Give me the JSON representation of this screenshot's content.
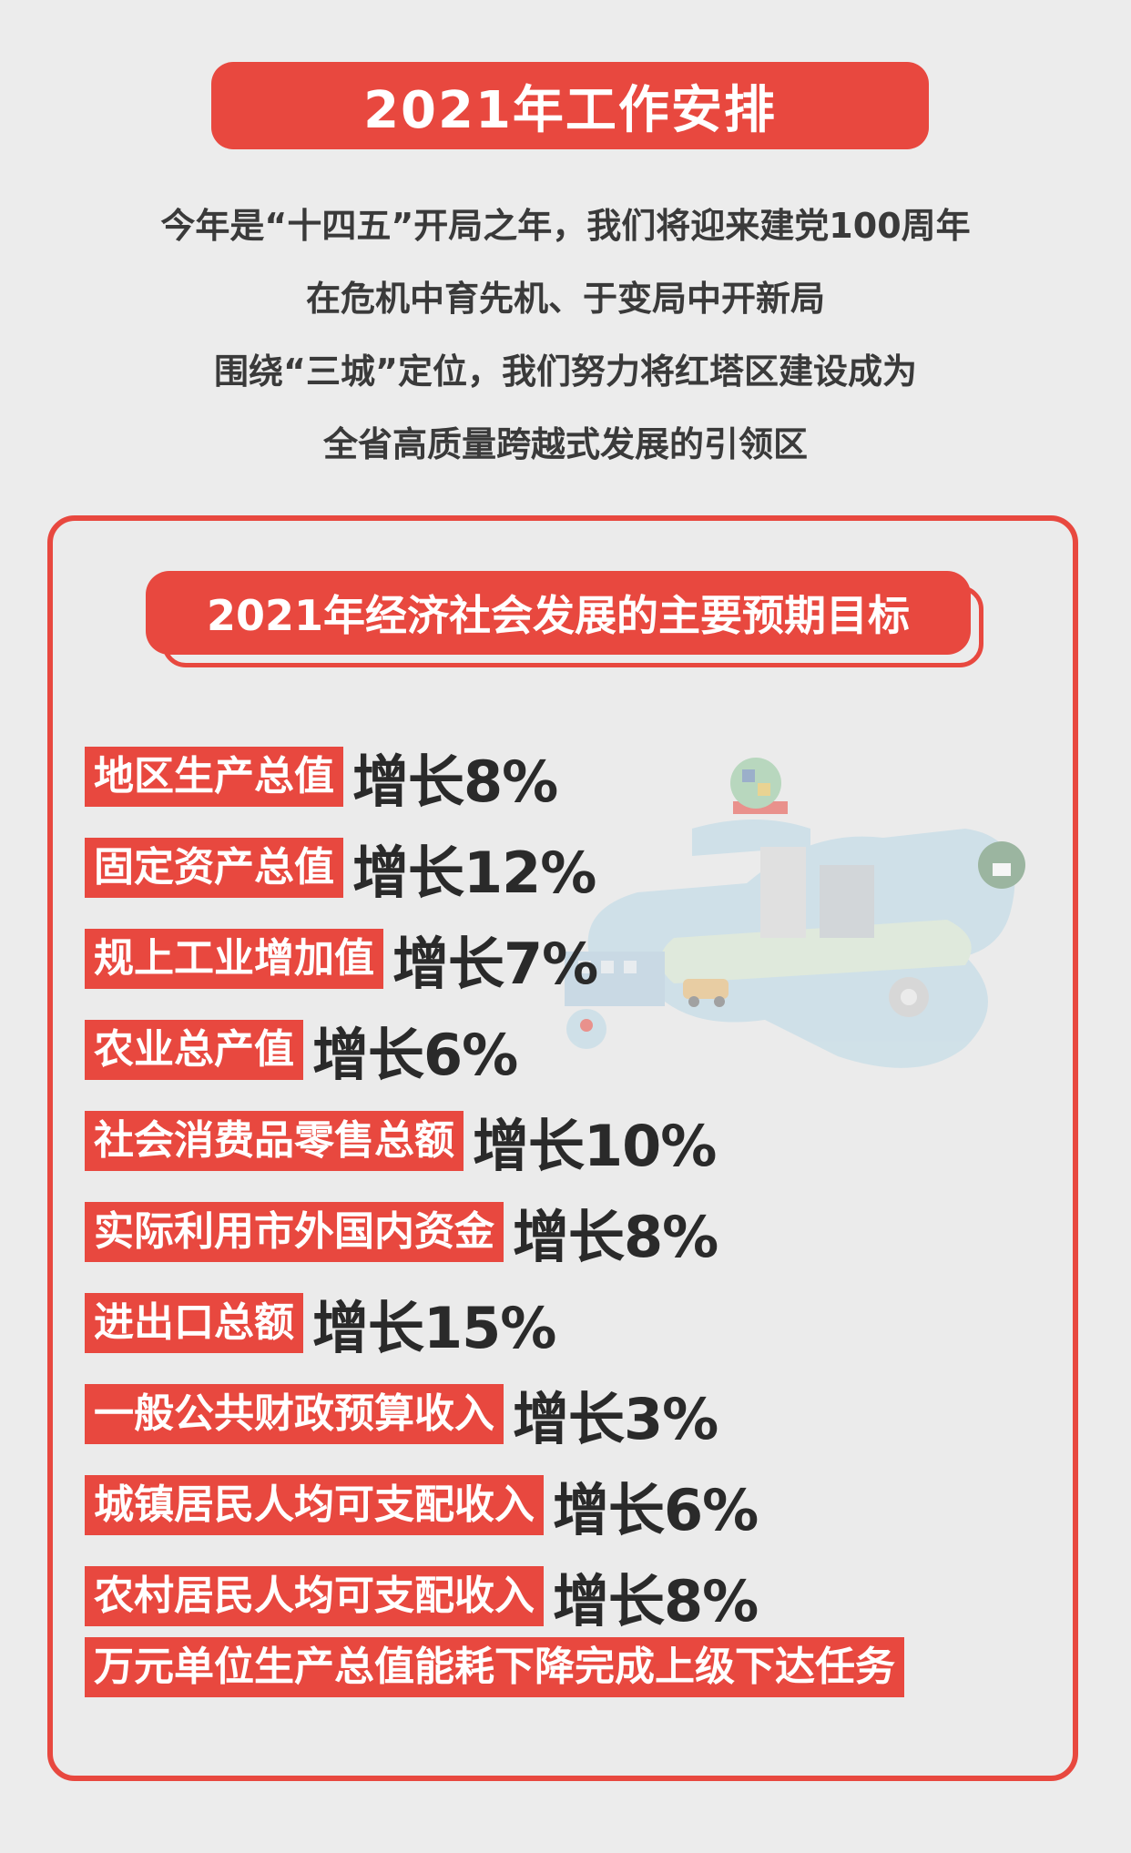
{
  "header": {
    "title": "2021年工作安排"
  },
  "intro": {
    "lines": [
      "今年是“十四五”开局之年，我们将迎来建党100周年",
      "在危机中育先机、于变局中开新局",
      "围绕“三城”定位，我们努力将红塔区建设成为",
      "全省高质量跨越式发展的引领区"
    ]
  },
  "targets": {
    "title": "2021年经济社会发展的主要预期目标",
    "items": [
      {
        "label": "地区生产总值",
        "value": "增长8%"
      },
      {
        "label": "固定资产总值",
        "value": "增长12%"
      },
      {
        "label": "规上工业增加值",
        "value": "增长7%"
      },
      {
        "label": "农业总产值",
        "value": "增长6%"
      },
      {
        "label": "社会消费品零售总额",
        "value": "增长10%"
      },
      {
        "label": "实际利用市外国内资金",
        "value": "增长8%"
      },
      {
        "label": "进出口总额",
        "value": "增长15%"
      },
      {
        "label": "一般公共财政预算收入",
        "value": "增长3%"
      },
      {
        "label": "城镇居民人均可支配收入",
        "value": "增长6%"
      },
      {
        "label": "农村居民人均可支配收入",
        "value": "增长8%"
      },
      {
        "label": "万元单位生产总值能耗下降完成上级下达任务",
        "value": ""
      }
    ]
  },
  "colors": {
    "accent": "#e8483f",
    "background": "#ececec",
    "text": "#3a3a3a"
  },
  "illustration": {
    "icon": "city-map-illustration"
  }
}
